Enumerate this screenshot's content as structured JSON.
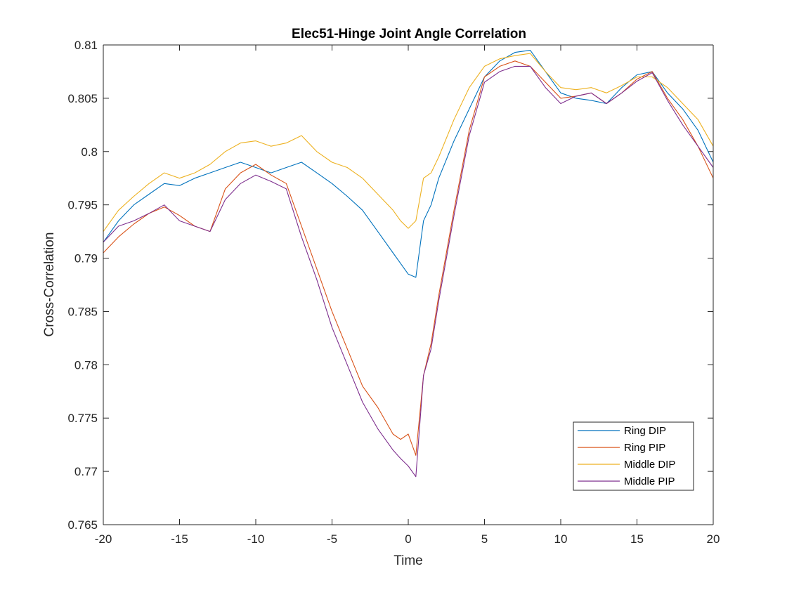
{
  "chart_data": {
    "type": "line",
    "title": "Elec51-Hinge Joint Angle Correlation",
    "xlabel": "Time",
    "ylabel": "Cross-Correlation",
    "xlim": [
      -20,
      20
    ],
    "ylim": [
      0.765,
      0.81
    ],
    "xticks": [
      -20,
      -15,
      -10,
      -5,
      0,
      5,
      10,
      15,
      20
    ],
    "xtick_labels": [
      "-20",
      "-15",
      "-10",
      "-5",
      "0",
      "5",
      "10",
      "15",
      "20"
    ],
    "yticks": [
      0.765,
      0.77,
      0.775,
      0.78,
      0.785,
      0.79,
      0.795,
      0.8,
      0.805,
      0.81
    ],
    "ytick_labels": [
      "0.765",
      "0.77",
      "0.775",
      "0.78",
      "0.785",
      "0.79",
      "0.795",
      "0.8",
      "0.805",
      "0.81"
    ],
    "grid": false,
    "legend_position": "bottom-right",
    "x": [
      -20,
      -19,
      -18,
      -17,
      -16,
      -15,
      -14,
      -13,
      -12,
      -11,
      -10,
      -9,
      -8,
      -7,
      -6,
      -5,
      -4,
      -3,
      -2,
      -1,
      -0.5,
      0,
      0.5,
      1,
      1.5,
      2,
      3,
      4,
      5,
      6,
      7,
      8,
      9,
      10,
      11,
      12,
      13,
      14,
      15,
      16,
      17,
      18,
      19,
      20
    ],
    "series": [
      {
        "name": "Ring DIP",
        "color": "#0072BD",
        "values": [
          0.7915,
          0.7935,
          0.795,
          0.796,
          0.797,
          0.7968,
          0.7975,
          0.798,
          0.7985,
          0.799,
          0.7985,
          0.798,
          0.7985,
          0.799,
          0.798,
          0.797,
          0.7958,
          0.7945,
          0.7925,
          0.7905,
          0.7895,
          0.7885,
          0.7882,
          0.7935,
          0.795,
          0.7975,
          0.801,
          0.804,
          0.807,
          0.8085,
          0.8093,
          0.8095,
          0.8075,
          0.8055,
          0.805,
          0.8048,
          0.8045,
          0.806,
          0.8072,
          0.8075,
          0.8055,
          0.804,
          0.802,
          0.799
        ]
      },
      {
        "name": "Ring PIP",
        "color": "#D95319",
        "values": [
          0.7905,
          0.792,
          0.7932,
          0.7942,
          0.7948,
          0.794,
          0.793,
          0.7925,
          0.7965,
          0.798,
          0.7988,
          0.7978,
          0.797,
          0.793,
          0.789,
          0.785,
          0.7815,
          0.778,
          0.776,
          0.7735,
          0.773,
          0.7735,
          0.7715,
          0.779,
          0.782,
          0.7865,
          0.7945,
          0.802,
          0.807,
          0.808,
          0.8085,
          0.808,
          0.8065,
          0.805,
          0.8052,
          0.8055,
          0.8045,
          0.8055,
          0.8068,
          0.8075,
          0.805,
          0.803,
          0.8005,
          0.7975
        ]
      },
      {
        "name": "Middle DIP",
        "color": "#EDB120",
        "values": [
          0.7925,
          0.7945,
          0.7958,
          0.797,
          0.798,
          0.7975,
          0.798,
          0.7988,
          0.8,
          0.8008,
          0.801,
          0.8005,
          0.8008,
          0.8015,
          0.8,
          0.799,
          0.7985,
          0.7975,
          0.796,
          0.7945,
          0.7935,
          0.7928,
          0.7935,
          0.7975,
          0.798,
          0.7995,
          0.803,
          0.806,
          0.808,
          0.8087,
          0.809,
          0.8092,
          0.8075,
          0.806,
          0.8058,
          0.806,
          0.8055,
          0.8062,
          0.807,
          0.807,
          0.806,
          0.8045,
          0.803,
          0.8005
        ]
      },
      {
        "name": "Middle PIP",
        "color": "#7E2F8E",
        "values": [
          0.7915,
          0.793,
          0.7935,
          0.7942,
          0.795,
          0.7935,
          0.793,
          0.7925,
          0.7955,
          0.797,
          0.7978,
          0.7972,
          0.7965,
          0.792,
          0.788,
          0.7835,
          0.78,
          0.7765,
          0.774,
          0.772,
          0.7712,
          0.7705,
          0.7695,
          0.779,
          0.7815,
          0.786,
          0.794,
          0.8015,
          0.8065,
          0.8075,
          0.808,
          0.808,
          0.806,
          0.8045,
          0.8052,
          0.8055,
          0.8045,
          0.8055,
          0.8066,
          0.8074,
          0.8048,
          0.8025,
          0.8005,
          0.7985
        ]
      }
    ]
  }
}
